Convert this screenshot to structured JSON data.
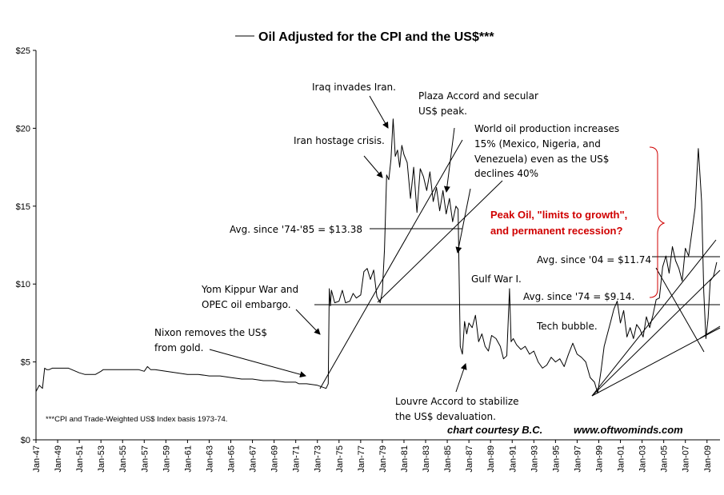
{
  "chart_data": {
    "type": "line",
    "title": "Oil Adjusted for the CPI and the US$***",
    "xlabel": "",
    "ylabel": "",
    "ylim": [
      0,
      25
    ],
    "yticks": [
      "$0",
      "$5",
      "$10",
      "$15",
      "$20",
      "$25"
    ],
    "xticks": [
      "Jan-47",
      "Jan-49",
      "Jan-51",
      "Jan-53",
      "Jan-55",
      "Jan-57",
      "Jan-59",
      "Jan-61",
      "Jan-63",
      "Jan-65",
      "Jan-67",
      "Jan-69",
      "Jan-71",
      "Jan-73",
      "Jan-75",
      "Jan-77",
      "Jan-79",
      "Jan-81",
      "Jan-83",
      "Jan-85",
      "Jan-87",
      "Jan-89",
      "Jan-91",
      "Jan-93",
      "Jan-95",
      "Jan-97",
      "Jan-99",
      "Jan-01",
      "Jan-03",
      "Jan-05",
      "Jan-07",
      "Jan-09"
    ],
    "xlim": [
      1947.0,
      2010.2
    ],
    "grid": false,
    "series": [
      {
        "name": "",
        "x": [
          1947.0,
          1947.3,
          1947.6,
          1947.8,
          1948.0,
          1948.2,
          1948.5,
          1949.0,
          1950.0,
          1951.0,
          1951.5,
          1952.0,
          1952.5,
          1953.0,
          1953.2,
          1954.0,
          1955.0,
          1956.0,
          1956.5,
          1957.0,
          1957.3,
          1957.6,
          1958.0,
          1959.0,
          1960.0,
          1961.0,
          1962.0,
          1963.0,
          1964.0,
          1965.0,
          1966.0,
          1967.0,
          1968.0,
          1969.0,
          1970.0,
          1971.0,
          1971.3,
          1972.0,
          1973.0,
          1973.8,
          1974.0,
          1974.1,
          1974.2,
          1974.3,
          1974.6,
          1975.0,
          1975.3,
          1975.6,
          1976.0,
          1976.3,
          1976.6,
          1977.0,
          1977.3,
          1977.6,
          1977.9,
          1978.2,
          1978.5,
          1978.8,
          1979.0,
          1979.2,
          1979.4,
          1979.6,
          1979.8,
          1980.0,
          1980.2,
          1980.4,
          1980.6,
          1980.8,
          1981.0,
          1981.3,
          1981.6,
          1981.9,
          1982.2,
          1982.5,
          1982.8,
          1983.1,
          1983.4,
          1983.7,
          1984.0,
          1984.3,
          1984.6,
          1984.9,
          1985.2,
          1985.5,
          1985.8,
          1986.0,
          1986.2,
          1986.4,
          1986.6,
          1986.8,
          1987.0,
          1987.3,
          1987.6,
          1987.9,
          1988.2,
          1988.5,
          1988.8,
          1989.1,
          1989.5,
          1989.9,
          1990.2,
          1990.5,
          1990.75,
          1990.9,
          1991.1,
          1991.4,
          1991.8,
          1992.2,
          1992.6,
          1993.0,
          1993.4,
          1993.8,
          1994.2,
          1994.6,
          1995.0,
          1995.4,
          1995.8,
          1996.2,
          1996.6,
          1997.0,
          1997.4,
          1997.8,
          1998.2,
          1998.6,
          1998.9,
          1999.2,
          1999.5,
          1999.8,
          2000.1,
          2000.4,
          2000.7,
          2001.0,
          2001.3,
          2001.6,
          2001.9,
          2002.2,
          2002.5,
          2002.8,
          2003.1,
          2003.4,
          2003.7,
          2004.0,
          2004.3,
          2004.6,
          2004.9,
          2005.2,
          2005.5,
          2005.8,
          2006.1,
          2006.4,
          2006.7,
          2007.0,
          2007.3,
          2007.6,
          2007.9,
          2008.2,
          2008.4,
          2008.5,
          2008.7,
          2008.9,
          2009.1,
          2009.3,
          2009.6,
          2009.9
        ],
        "values": [
          3.1,
          3.5,
          3.3,
          4.6,
          4.5,
          4.5,
          4.6,
          4.6,
          4.6,
          4.3,
          4.2,
          4.2,
          4.2,
          4.4,
          4.5,
          4.5,
          4.5,
          4.5,
          4.5,
          4.4,
          4.7,
          4.5,
          4.5,
          4.4,
          4.3,
          4.2,
          4.2,
          4.1,
          4.1,
          4.0,
          3.9,
          3.9,
          3.8,
          3.8,
          3.7,
          3.7,
          3.6,
          3.6,
          3.5,
          3.3,
          3.6,
          9.7,
          8.6,
          9.6,
          8.8,
          8.9,
          9.6,
          8.8,
          8.9,
          9.4,
          9.1,
          9.3,
          10.8,
          11.0,
          10.3,
          10.9,
          9.2,
          8.8,
          9.5,
          12.2,
          17.0,
          16.7,
          18.0,
          20.6,
          18.2,
          18.6,
          17.5,
          18.9,
          18.3,
          17.8,
          15.5,
          17.5,
          14.6,
          17.4,
          16.9,
          16.0,
          17.2,
          15.3,
          16.2,
          14.7,
          16.0,
          14.5,
          15.5,
          14.0,
          15.0,
          14.8,
          6.0,
          5.5,
          7.6,
          6.8,
          7.5,
          7.2,
          8.0,
          6.3,
          6.8,
          6.0,
          5.7,
          6.7,
          6.5,
          6.0,
          5.2,
          5.4,
          9.7,
          6.3,
          6.5,
          6.1,
          5.8,
          6.0,
          5.5,
          5.7,
          5.0,
          4.6,
          4.8,
          5.3,
          5.0,
          5.2,
          4.7,
          5.5,
          6.2,
          5.5,
          5.3,
          5.0,
          4.0,
          3.7,
          3.0,
          4.4,
          6.0,
          6.8,
          7.6,
          8.4,
          8.9,
          7.5,
          8.3,
          6.6,
          7.2,
          6.5,
          7.4,
          7.1,
          6.6,
          7.9,
          7.2,
          8.0,
          9.0,
          9.1,
          11.1,
          11.8,
          10.7,
          12.4,
          11.5,
          11.0,
          10.2,
          12.3,
          11.8,
          13.3,
          14.9,
          18.7,
          16.5,
          15.3,
          9.5,
          6.5,
          7.8,
          10.2,
          10.5,
          11.4
        ]
      }
    ],
    "annotations": {
      "iraq": "Iraq invades Iran.",
      "plaza_1": "Plaza Accord and secular",
      "plaza_2": "US$ peak.",
      "hostage": "Iran hostage crisis.",
      "world_1": "World oil production increases",
      "world_2": "15% (Mexico, Nigeria, and",
      "world_3": "Venezuela)  even as the US$",
      "world_4": "declines 40%",
      "avg_7485": "Avg.  since '74-'85 = $13.38",
      "peak_1": "Peak Oil, \"limits to growth\",",
      "peak_2": "and permanent recession?",
      "avg_04": "Avg. since '04 = $11.74",
      "yom_1": "Yom Kippur War and",
      "yom_2": "OPEC oil embargo.",
      "gulf": "Gulf War I.",
      "avg_74": "Avg. since '74 = $9.14.",
      "nixon_1": "Nixon removes the US$",
      "nixon_2": "from gold.",
      "tech": "Tech bubble.",
      "louvre_1": "Louvre Accord to stabilize",
      "louvre_2": "the US$ devaluation.",
      "footnote": "***CPI and Trade-Weighted US$ Index basis 1973-74.",
      "credit_1": "chart courtesy B.C.",
      "credit_2": "www.oftwominds.com"
    },
    "colors": {
      "line": "#000000",
      "peak_oil_text": "#d00000",
      "bracket": "#d00000"
    }
  }
}
